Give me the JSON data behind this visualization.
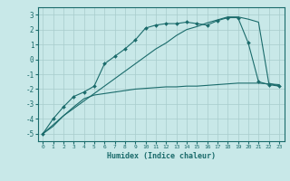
{
  "line1_x": [
    0,
    1,
    2,
    3,
    4,
    5,
    6,
    7,
    8,
    9,
    10,
    11,
    12,
    13,
    14,
    15,
    16,
    17,
    18,
    19,
    20,
    21,
    22,
    23
  ],
  "line1_y": [
    -5.0,
    -4.0,
    -3.2,
    -2.5,
    -2.2,
    -1.8,
    -0.3,
    0.2,
    0.7,
    1.3,
    2.1,
    2.3,
    2.4,
    2.4,
    2.5,
    2.4,
    2.3,
    2.6,
    2.8,
    2.8,
    1.1,
    -1.5,
    -1.7,
    -1.8
  ],
  "line2_x": [
    0,
    1,
    2,
    3,
    4,
    5,
    6,
    7,
    8,
    9,
    10,
    11,
    12,
    13,
    14,
    15,
    16,
    17,
    18,
    19,
    20,
    21,
    22,
    23
  ],
  "line2_y": [
    -5.0,
    -4.4,
    -3.8,
    -3.3,
    -2.8,
    -2.3,
    -1.8,
    -1.3,
    -0.8,
    -0.3,
    0.2,
    0.7,
    1.1,
    1.6,
    2.0,
    2.2,
    2.45,
    2.65,
    2.85,
    2.85,
    2.7,
    2.5,
    -1.6,
    -1.8
  ],
  "line3_x": [
    0,
    1,
    2,
    3,
    4,
    5,
    6,
    7,
    8,
    9,
    10,
    11,
    12,
    13,
    14,
    15,
    16,
    17,
    18,
    19,
    20,
    21,
    22,
    23
  ],
  "line3_y": [
    -5.0,
    -4.5,
    -3.8,
    -3.2,
    -2.65,
    -2.4,
    -2.3,
    -2.2,
    -2.1,
    -2.0,
    -1.95,
    -1.9,
    -1.85,
    -1.85,
    -1.8,
    -1.8,
    -1.75,
    -1.7,
    -1.65,
    -1.6,
    -1.6,
    -1.6,
    -1.65,
    -1.7
  ],
  "color": "#1a6b6b",
  "bg_color": "#c8e8e8",
  "grid_color": "#a8cccc",
  "xlabel": "Humidex (Indice chaleur)",
  "ylim": [
    -5.5,
    3.5
  ],
  "xlim": [
    -0.5,
    23.5
  ],
  "yticks": [
    -5,
    -4,
    -3,
    -2,
    -1,
    0,
    1,
    2,
    3
  ],
  "xticks": [
    0,
    1,
    2,
    3,
    4,
    5,
    6,
    7,
    8,
    9,
    10,
    11,
    12,
    13,
    14,
    15,
    16,
    17,
    18,
    19,
    20,
    21,
    22,
    23
  ]
}
